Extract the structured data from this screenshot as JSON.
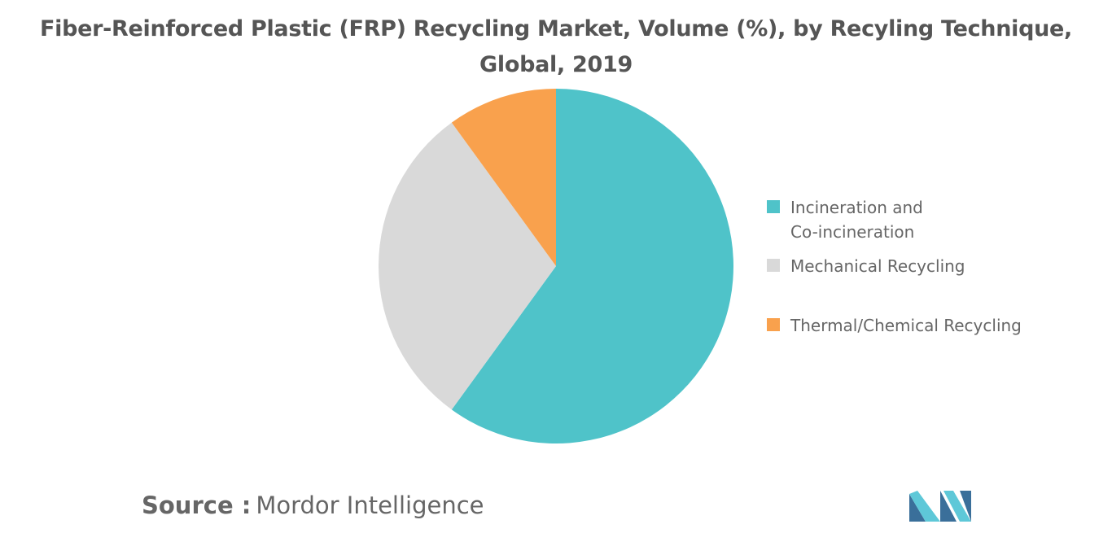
{
  "chart_data": {
    "type": "pie",
    "title_line1": "Fiber-Reinforced Plastic (FRP) Recycling Market, Volume (%), by Recyling Technique,",
    "title_line2": "Global, 2019",
    "slices": [
      {
        "label_line1": "Incineration and",
        "label_line2": "Co-incineration",
        "value": 60,
        "color": "#4fc3c9"
      },
      {
        "label_line1": "Mechanical Recycling",
        "label_line2": "",
        "value": 30,
        "color": "#d9d9d9"
      },
      {
        "label_line1": "Thermal/Chemical Recycling",
        "label_line2": "",
        "value": 10,
        "color": "#f9a14d"
      }
    ],
    "legend_placement": "right",
    "start_angle": "12 o'clock",
    "direction": "clockwise"
  },
  "source": {
    "label": "Source :",
    "value": "Mordor Intelligence"
  },
  "logo": {
    "icon": "mordor-intelligence-logo-icon",
    "colors": [
      "#3a6f9a",
      "#5ec8d8"
    ]
  }
}
